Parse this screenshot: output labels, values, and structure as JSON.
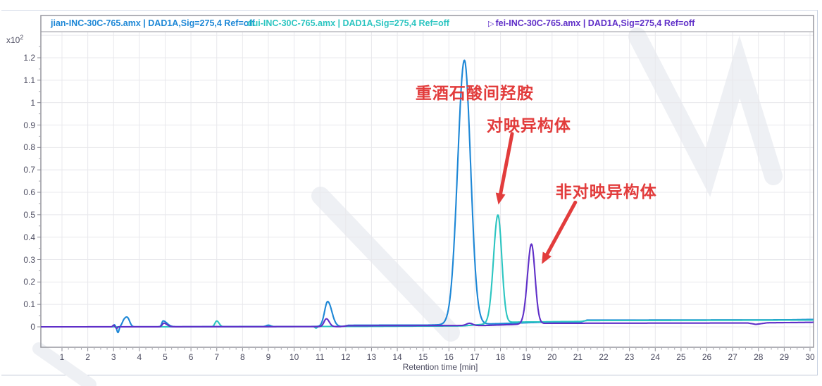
{
  "legend": {
    "items": [
      {
        "label": "jian-INC-30C-765.amx | DAD1A,Sig=275,4  Ref=off",
        "color": "#1d87d6",
        "marker": ""
      },
      {
        "label": "dui-INC-30C-765.amx | DAD1A,Sig=275,4  Ref=off",
        "color": "#2cc5c1",
        "marker": ""
      },
      {
        "label": "fei-INC-30C-765.amx | DAD1A,Sig=275,4  Ref=off",
        "color": "#5f2fc8",
        "marker": "▷"
      }
    ]
  },
  "chart_data": {
    "type": "line",
    "xlabel": "Retention time [min]",
    "y_multiplier": "x10",
    "y_exponent": "2",
    "xlim": [
      0.18,
      30.13
    ],
    "ylim": [
      -0.092,
      1.32
    ],
    "x_ticks": [
      1,
      2,
      3,
      4,
      5,
      6,
      7,
      8,
      9,
      10,
      11,
      12,
      13,
      14,
      15,
      16,
      17,
      18,
      19,
      20,
      21,
      22,
      23,
      24,
      25,
      26,
      27,
      28,
      29,
      30
    ],
    "y_ticks": [
      0,
      0.1,
      0.2,
      0.3,
      0.4,
      0.5,
      0.6,
      0.7,
      0.8,
      0.9,
      1.0,
      1.1,
      1.2
    ],
    "grid": true,
    "series": [
      {
        "name": "jian-INC-30C-765.amx",
        "color": "#1d87d6",
        "main_peak": {
          "retention_min": 16.6,
          "height": 1.185
        },
        "baseline": [
          [
            0.18,
            0
          ],
          [
            2.9,
            0
          ],
          [
            11.9,
            0.002
          ],
          [
            12.1,
            0.007
          ],
          [
            15.2,
            0.008
          ],
          [
            17.6,
            0.013
          ],
          [
            19.5,
            0.02
          ],
          [
            21.1,
            0.021
          ],
          [
            21.35,
            0.03
          ],
          [
            29.0,
            0.031
          ],
          [
            30.13,
            0.033
          ]
        ],
        "peaks": [
          [
            3.03,
            0.009,
            0.04,
            0.04
          ],
          [
            3.17,
            -0.026,
            0.04,
            0.04
          ],
          [
            3.42,
            0.031,
            0.08,
            0.1
          ],
          [
            3.56,
            0.028,
            0.08,
            0.08
          ],
          [
            4.92,
            0.026,
            0.05,
            0.15
          ],
          [
            9.0,
            0.006,
            0.08,
            0.08
          ],
          [
            11.3,
            0.111,
            0.12,
            0.16
          ],
          [
            16.6,
            1.178,
            0.26,
            0.24
          ]
        ]
      },
      {
        "name": "dui-INC-30C-765.amx",
        "color": "#2cc5c1",
        "main_peak": {
          "retention_min": 17.9,
          "height": 0.49
        },
        "baseline": [
          [
            0.18,
            0
          ],
          [
            6.5,
            0
          ],
          [
            12.8,
            0.002
          ],
          [
            16.5,
            0.004
          ],
          [
            18.5,
            0.021
          ],
          [
            21.1,
            0.024
          ],
          [
            21.35,
            0.028
          ],
          [
            30.13,
            0.03
          ]
        ],
        "peaks": [
          [
            7.0,
            0.026,
            0.07,
            0.09
          ],
          [
            10.85,
            -0.007,
            0.04,
            0.04
          ],
          [
            17.9,
            0.483,
            0.17,
            0.15
          ]
        ]
      },
      {
        "name": "fei-INC-30C-765.amx",
        "color": "#5f2fc8",
        "main_peak": {
          "retention_min": 19.2,
          "height": 0.365
        },
        "baseline": [
          [
            0.18,
            0
          ],
          [
            11.8,
            0.001
          ],
          [
            12.1,
            0.005
          ],
          [
            17.4,
            0.006
          ],
          [
            19.9,
            0.016
          ],
          [
            27.6,
            0.017
          ],
          [
            27.9,
            0.011
          ],
          [
            28.35,
            0.018
          ],
          [
            30.13,
            0.02
          ]
        ],
        "peaks": [
          [
            3.0,
            0.007,
            0.03,
            0.03
          ],
          [
            3.12,
            -0.007,
            0.03,
            0.03
          ],
          [
            4.95,
            0.016,
            0.06,
            0.12
          ],
          [
            11.25,
            0.035,
            0.09,
            0.11
          ],
          [
            16.8,
            0.01,
            0.12,
            0.12
          ],
          [
            19.2,
            0.356,
            0.155,
            0.14
          ]
        ]
      }
    ],
    "annotations": [
      {
        "text": "重酒石酸间羟胺",
        "t": 17.0,
        "v": 1.05
      },
      {
        "text": "对映异构体",
        "t": 19.1,
        "v": 0.905
      },
      {
        "text": "非对映异构体",
        "t": 22.1,
        "v": 0.61
      }
    ],
    "arrows": [
      {
        "from_t": 18.45,
        "from_v": 0.861,
        "to_t": 17.92,
        "to_v": 0.545
      },
      {
        "from_t": 20.9,
        "from_v": 0.555,
        "to_t": 19.6,
        "to_v": 0.28
      }
    ],
    "annotation_color": "#e23c3c"
  }
}
